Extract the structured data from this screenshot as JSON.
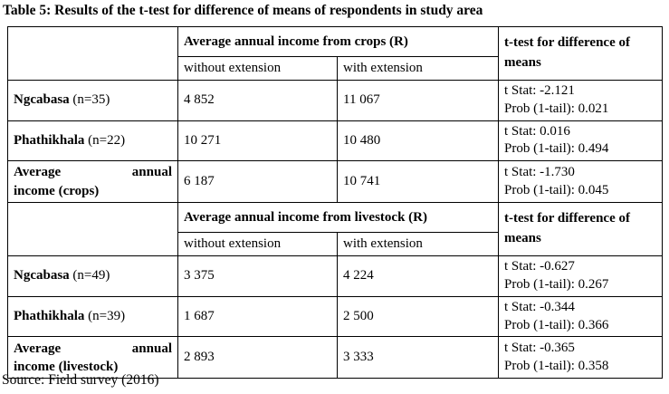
{
  "title": "Table 5: Results of the t-test for difference of means of respondents in study area",
  "source": "Source: Field survey (2016)",
  "sections": [
    {
      "group_header": "Average annual income from crops (R)",
      "ttest_header": "t-test for difference of means",
      "without_label": "without extension",
      "with_label": "with extension",
      "rows": [
        {
          "name": "Ngcabasa",
          "n": "(n=35)",
          "without": "4 852",
          "with": "11 067",
          "tstat": "t Stat: -2.121",
          "prob": "Prob (1-tail): 0.021"
        },
        {
          "name": "Phathikhala",
          "n": "(n=22)",
          "without": "10 271",
          "with": "10 480",
          "tstat": "t Stat: 0.016",
          "prob": "Prob (1-tail): 0.494"
        },
        {
          "avg_word1": "Average",
          "avg_word2": "annual",
          "avg_line2": "income (crops)",
          "without": "6 187",
          "with": "10 741",
          "tstat": "t Stat: -1.730",
          "prob": "Prob (1-tail): 0.045"
        }
      ]
    },
    {
      "group_header": "Average annual income from livestock (R)",
      "ttest_header": "t-test for difference of means",
      "without_label": "without extension",
      "with_label": "with extension",
      "rows": [
        {
          "name": "Ngcabasa",
          "n": "(n=49)",
          "without": "3 375",
          "with": "4 224",
          "tstat": "t Stat: -0.627",
          "prob": "Prob (1-tail): 0.267"
        },
        {
          "name": "Phathikhala",
          "n": "(n=39)",
          "without": "1 687",
          "with": "2 500",
          "tstat": "t Stat: -0.344",
          "prob": "Prob (1-tail): 0.366"
        },
        {
          "avg_word1": "Average",
          "avg_word2": "annual",
          "avg_line2": "income (livestock)",
          "without": "2 893",
          "with": "3 333",
          "tstat": "t Stat: -0.365",
          "prob": "Prob (1-tail): 0.358"
        }
      ]
    }
  ]
}
